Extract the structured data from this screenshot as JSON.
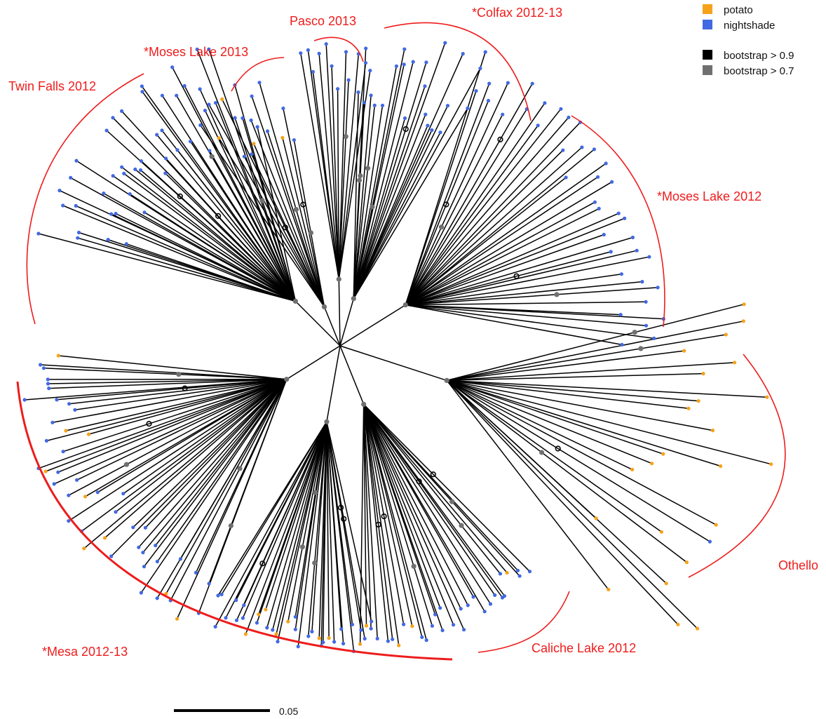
{
  "colors": {
    "branch": "#000000",
    "potato": "#f5a31a",
    "nightshade": "#4169e1",
    "clade": "#ee1c1c",
    "boot_high": "#000000",
    "boot_mid": "#707070"
  },
  "legend": {
    "potato": "potato",
    "nightshade": "nightshade",
    "boot_high": "bootstrap > 0.9",
    "boot_mid": "bootstrap > 0.7"
  },
  "clades": [
    {
      "id": "twin-falls",
      "label": "Twin Falls 2012"
    },
    {
      "id": "moses-lake-2013",
      "label": "*Moses Lake 2013"
    },
    {
      "id": "pasco",
      "label": "Pasco 2013"
    },
    {
      "id": "colfax",
      "label": "*Colfax 2012-13"
    },
    {
      "id": "moses-lake-2012",
      "label": "*Moses Lake 2012"
    },
    {
      "id": "othello",
      "label": "Othello"
    },
    {
      "id": "caliche",
      "label": "Caliche Lake 2012"
    },
    {
      "id": "mesa",
      "label": "*Mesa 2012-13"
    }
  ],
  "scale_bar": {
    "label": "0.05"
  }
}
